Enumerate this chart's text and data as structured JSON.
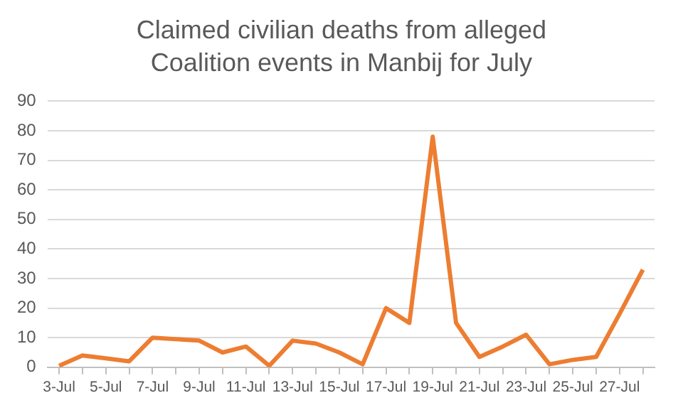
{
  "chart_data": {
    "type": "line",
    "title": "Claimed civilian deaths from alleged Coalition events in Manbij for July",
    "categories": [
      "3-Jul",
      null,
      "5-Jul",
      null,
      "7-Jul",
      null,
      "9-Jul",
      null,
      "11-Jul",
      null,
      "13-Jul",
      null,
      "15-Jul",
      null,
      "17-Jul",
      null,
      "19-Jul",
      null,
      "21-Jul",
      null,
      "23-Jul",
      null,
      "25-Jul",
      null,
      "27-Jul",
      null
    ],
    "series": [
      {
        "color": "#ed7d31",
        "values": [
          0.5,
          4,
          3,
          2,
          10,
          9.5,
          9,
          5,
          7,
          0.5,
          9,
          8,
          5,
          1,
          20,
          15,
          78,
          15,
          3.5,
          7,
          11,
          1,
          2.5,
          3.5,
          18,
          33
        ]
      }
    ],
    "ylim": [
      0,
      90
    ],
    "yticks": [
      0,
      10,
      20,
      30,
      40,
      50,
      60,
      70,
      80,
      90
    ],
    "grid": "y",
    "legend": false,
    "marker": "none",
    "line_style": "solid"
  }
}
